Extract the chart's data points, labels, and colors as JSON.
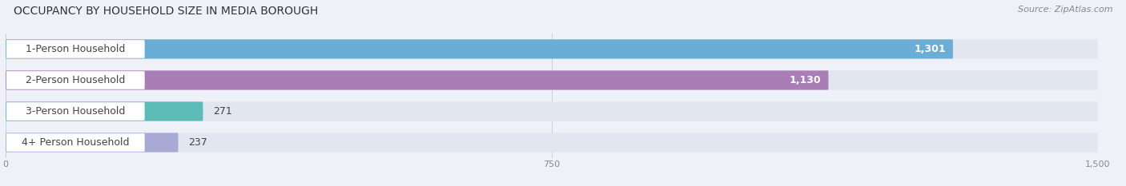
{
  "title": "OCCUPANCY BY HOUSEHOLD SIZE IN MEDIA BOROUGH",
  "source": "Source: ZipAtlas.com",
  "categories": [
    "1-Person Household",
    "2-Person Household",
    "3-Person Household",
    "4+ Person Household"
  ],
  "values": [
    1301,
    1130,
    271,
    237
  ],
  "bar_colors": [
    "#6aaed6",
    "#a97db6",
    "#5bbcb8",
    "#a9a9d6"
  ],
  "xlim": [
    0,
    1500
  ],
  "xticks": [
    0,
    750,
    1500
  ],
  "value_labels": [
    "1,301",
    "1,130",
    "271",
    "237"
  ],
  "title_fontsize": 10,
  "source_fontsize": 8,
  "label_fontsize": 9,
  "value_fontsize": 9,
  "background_color": "#eef1f7",
  "bar_background_color": "#e2e6f0",
  "label_bg_color": "#ffffff",
  "tick_color": "#888888",
  "text_color": "#444444"
}
